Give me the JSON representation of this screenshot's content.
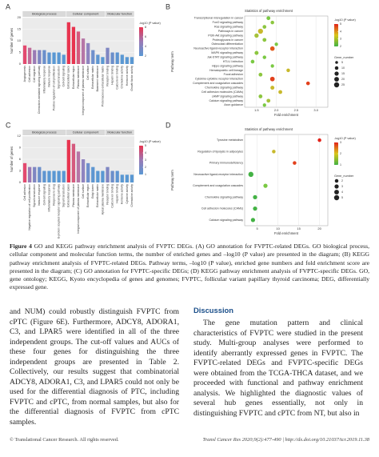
{
  "figure": {
    "panels": [
      {
        "label": "A",
        "type": "bar",
        "y_label": "Number of genes",
        "ylim": [
          0,
          20
        ],
        "yticks": [
          0,
          5,
          10,
          15,
          20
        ],
        "groups": [
          {
            "name": "Biological process",
            "categories": [
              "Angiogenesis",
              "Cell adhesion",
              "Cell migration",
              "Chemokine-mediated signaling pathway",
              "Inflammatory response",
              "Immune response",
              "Positive regulation of cell proliferation",
              "Signal transduction",
              "Cell-cell signaling"
            ],
            "values": [
              8,
              7,
              6,
              6,
              6,
              5,
              5,
              5,
              4
            ],
            "colors": [
              "#e34a6f",
              "#c06c9a",
              "#9a7ab5",
              "#7f86c2",
              "#6b8fcb",
              "#5e95d1",
              "#5a98d3",
              "#5a98d3",
              "#5a98d3"
            ]
          },
          {
            "name": "Cellular component",
            "categories": [
              "Extracellular space",
              "Extracellular region",
              "Plasma membrane",
              "Integral component of plasma membrane",
              "Cell surface",
              "Extracellular matrix",
              "Basement membrane",
              "Proteinaceous extracellular matrix"
            ],
            "values": [
              18,
              16,
              14,
              11,
              9,
              6,
              4,
              3
            ],
            "colors": [
              "#e8344f",
              "#e8344f",
              "#d55a7e",
              "#b676a7",
              "#8f84c0",
              "#6f90cc",
              "#5e96d1",
              "#5a98d3"
            ]
          },
          {
            "name": "Molecular function",
            "categories": [
              "Receptor binding",
              "Heparin binding",
              "Calcium ion binding",
              "Chemokine activity",
              "Hormone activity",
              "Growth factor activity"
            ],
            "values": [
              7,
              5,
              5,
              4,
              3,
              3
            ],
            "colors": [
              "#7f86c2",
              "#6b8fcb",
              "#5e95d1",
              "#5a98d3",
              "#5a98d3",
              "#5a98d3"
            ]
          }
        ],
        "legend": {
          "title": "-log10 (P value)",
          "lim": [
            2,
            8
          ],
          "ticks": [
            2,
            4,
            6,
            8
          ],
          "colors": [
            "#5a98d3",
            "#9a7ab5",
            "#e8344f"
          ]
        }
      },
      {
        "label": "B",
        "type": "dot",
        "title": "Statistics of pathway enrichment",
        "y_label": "Pathway term",
        "x_label": "Fold enrichment",
        "xlim": [
          1.2,
          3.3
        ],
        "xticks": [
          {
            "value": 1.5,
            "label": "1.5"
          },
          {
            "value": 2,
            "label": "2.0"
          },
          {
            "value": 2.5,
            "label": "2.5"
          },
          {
            "value": 3,
            "label": "3.0"
          }
        ],
        "terms": [
          "Transcriptional misregulation in cancer",
          "FoxO signaling pathway",
          "Ras signaling pathway",
          "Pathways in cancer",
          "PI3K-Akt signaling pathway",
          "Proteoglycans in cancer",
          "Osteoclast differentiation",
          "Neuroactive ligand-receptor interaction",
          "MAPK signaling pathway",
          "Jak-STAT signaling pathway",
          "HTLV-I infection",
          "Hippo signaling pathway",
          "Hematopoietic cell lineage",
          "Focal adhesion",
          "Cytokine-cytokine receptor interaction",
          "Complement and coagulation cascades",
          "Chemokine signaling pathway",
          "Cell adhesion molecules (CAMs)",
          "cAMP signaling pathway",
          "Calcium signaling pathway",
          "Axon guidance"
        ],
        "values": [
          1.8,
          1.9,
          1.7,
          1.6,
          1.5,
          1.7,
          2.0,
          1.9,
          1.5,
          1.7,
          1.4,
          1.9,
          2.3,
          1.6,
          1.9,
          2.8,
          1.9,
          2.1,
          1.6,
          1.8,
          1.7
        ],
        "sizes": [
          12,
          10,
          11,
          24,
          16,
          12,
          9,
          18,
          13,
          10,
          11,
          9,
          10,
          12,
          19,
          11,
          13,
          12,
          12,
          12,
          9
        ],
        "colors": [
          "#7ac943",
          "#8cc63f",
          "#8cc63f",
          "#c8b92c",
          "#a6c23a",
          "#8cc63f",
          "#7ac943",
          "#e25a1c",
          "#8cc63f",
          "#7ac943",
          "#7ac943",
          "#7ac943",
          "#c8b92c",
          "#8cc63f",
          "#e2401c",
          "#e2401c",
          "#c8b92c",
          "#c8b92c",
          "#8cc63f",
          "#a6c23a",
          "#7ac943"
        ],
        "legend": {
          "title": "-log10 (P value)",
          "lim": [
            2,
            5
          ],
          "ticks": [
            2,
            3,
            4,
            5
          ],
          "colors": [
            "#43b244",
            "#d9c61a",
            "#e2231a"
          ]
        },
        "size_legend": {
          "title": "Gene_number",
          "ticks": [
            5,
            10,
            15,
            20,
            25
          ]
        }
      },
      {
        "label": "C",
        "type": "bar",
        "y_label": "Number of genes",
        "ylim": [
          0,
          12
        ],
        "yticks": [
          0,
          3,
          6,
          9,
          12
        ],
        "groups": [
          {
            "name": "Biological process",
            "categories": [
              "Cell adhesion",
              "Negative regulation of cell proliferation",
              "Signal transduction",
              "Immune response",
              "Cell-cell signaling",
              "Inflammatory response",
              "Response to drug",
              "G-protein coupled receptor signaling pathway",
              "Signal transduction"
            ],
            "values": [
              5,
              4,
              4,
              4,
              3,
              3,
              3,
              3,
              3
            ],
            "colors": [
              "#e34a6f",
              "#9a7ab5",
              "#7f86c2",
              "#6b8fcb",
              "#5e95d1",
              "#5a98d3",
              "#5a98d3",
              "#5a98d3",
              "#5a98d3"
            ]
          },
          {
            "name": "Cellular component",
            "categories": [
              "Extracellular space",
              "Plasma membrane",
              "Integral component of plasma membrane",
              "Cell surface",
              "Extracellular region",
              "Golgi lumen",
              "Extracellular matrix",
              "Apical plasma membrane"
            ],
            "values": [
              11,
              10,
              8,
              6,
              5,
              4,
              3,
              3
            ],
            "colors": [
              "#e8344f",
              "#d55a7e",
              "#b676a7",
              "#8f84c0",
              "#6f90cc",
              "#5e96d1",
              "#5a98d3",
              "#5a98d3"
            ]
          },
          {
            "name": "Molecular function",
            "categories": [
              "Receptor binding",
              "Calcium ion binding",
              "Heparin binding",
              "Hormone activity",
              "Cytokine activity",
              "Chemokine activity"
            ],
            "values": [
              4,
              3,
              3,
              2,
              2,
              2
            ],
            "colors": [
              "#7f86c2",
              "#6b8fcb",
              "#5e95d1",
              "#5a98d3",
              "#5a98d3",
              "#5a98d3"
            ]
          }
        ],
        "legend": {
          "title": "-log10 (P value)",
          "lim": [
            1,
            5
          ],
          "ticks": [
            1,
            2,
            3,
            4,
            5
          ],
          "colors": [
            "#5a98d3",
            "#9a7ab5",
            "#e8344f"
          ]
        }
      },
      {
        "label": "D",
        "type": "dot",
        "title": "Statistics of pathway enrichment",
        "y_label": "Pathway term",
        "x_label": "Fold enrichment",
        "xlim": [
          2,
          22
        ],
        "xticks": [
          5,
          10,
          15,
          20
        ],
        "terms": [
          "Tyrosine metabolism",
          "Regulation of lipolysis in adipocytes",
          "Primary immunodeficiency",
          "Neuroactive ligand-receptor interaction",
          "Complement and coagulation cascades",
          "Chemokine signaling pathway",
          "Cell adhesion molecules (CAMs)",
          "Calcium signaling pathway"
        ],
        "values": [
          20,
          9,
          14,
          3.5,
          7,
          4.5,
          4.5,
          4
        ],
        "sizes": [
          2,
          2,
          2,
          5,
          3,
          3,
          3,
          3
        ],
        "colors": [
          "#e2231a",
          "#c8b92c",
          "#e2401c",
          "#43b244",
          "#7ac943",
          "#43b244",
          "#43b244",
          "#43b244"
        ],
        "legend": {
          "title": "-log10 (P value)",
          "lim": [
            1,
            3
          ],
          "ticks": [
            1,
            2,
            3
          ],
          "colors": [
            "#43b244",
            "#d9c61a",
            "#e2231a"
          ]
        },
        "size_legend": {
          "title": "Gene_number",
          "ticks": [
            2,
            3,
            4,
            5
          ]
        }
      }
    ]
  },
  "caption": {
    "label": "Figure 4",
    "text": "GO and KEGG pathway enrichment analysis of FVPTC DEGs. (A) GO annotation for FVPTC-related DEGs. GO biological process, cellular component and molecular function terms, the number of enriched genes and –log10 (P value) are presented in the diagram; (B) KEGG pathway enrichment analysis of FVPTC-related DEGs. Pathway terms, –log10 (P value), enriched gene numbers and fold enrichment score are presented in the diagram; (C) GO annotation for FVPTC-specific DEGs; (D) KEGG pathway enrichment analysis of FVPTC-specific DEGs. GO, gene ontology; KEGG, Kyoto encyclopedia of genes and genomes; FVPTC, follicular variant papillary thyroid carcinoma; DEG, differentially expressed gene."
  },
  "left_column": "and NUM) could robustly distinguish FVPTC from cPTC (Figure 6E). Furthermore, ADCY8, ADORA1, C3, and LPAR5 were identified in all of the three independent groups. The cut-off values and AUCs of these four genes for distinguishing the three independent groups are presented in Table 2. Collectively, our results suggest that combinatorial ADCY8, ADORA1, C3, and LPAR5 could not only be used for the differential diagnosis of PTC, including FVPTC and cPTC, from normal samples, but also for the differential diagnosis of FVPTC from cPTC samples.",
  "right_column": {
    "heading": "Discussion",
    "text": "The gene mutation pattern and clinical characteristics of FVPTC were studied in the present study. Multi-group analyses were performed to identify aberrantly expressed genes in FVPTC. The FVPTC-related DEGs and FVPTC-specific DEGs were obtained from the TCGA-THCA dataset, and we proceeded with functional and pathway enrichment analysis. We highlighted the diagnostic values of several hub genes essentially, not only in distinguishing FVPTC and cPTC from NT, but also in"
  },
  "footer": {
    "left": "© Translational Cancer Research. All rights reserved.",
    "right": "Transl Cancer Res 2020;9(2):477-490 | http://dx.doi.org/10.21037/tcr.2019.11.38"
  }
}
